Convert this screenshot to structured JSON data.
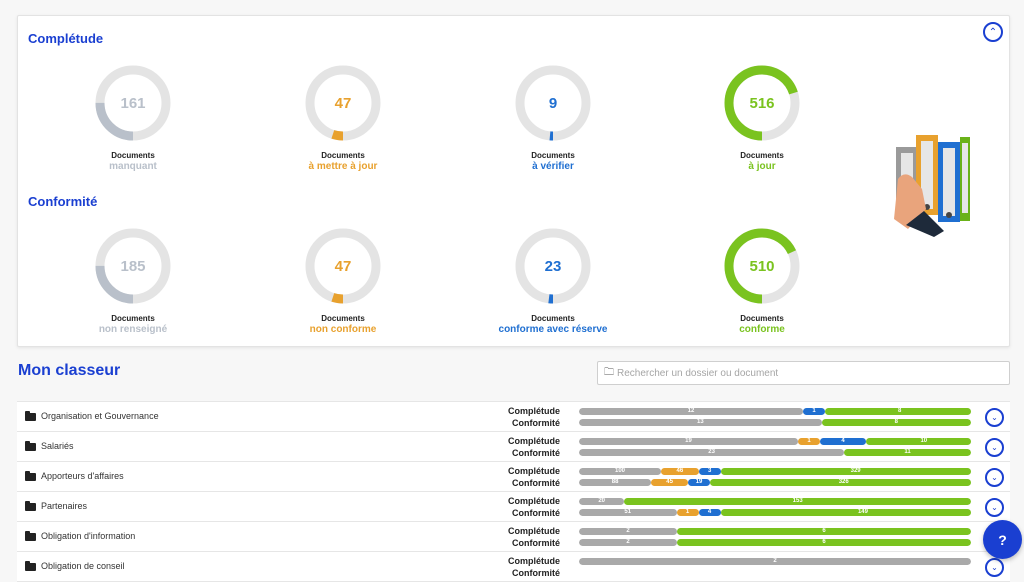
{
  "completude": {
    "title": "Complétude",
    "donuts": [
      {
        "value": "161",
        "label1": "Documents",
        "label2": "manquant",
        "color": "#b9c0ca",
        "fraction": 0.25
      },
      {
        "value": "47",
        "label1": "Documents",
        "label2": "à mettre à jour",
        "color": "#e8a12e",
        "fraction": 0.05
      },
      {
        "value": "9",
        "label1": "Documents",
        "label2": "à vérifier",
        "color": "#1f6fd1",
        "fraction": 0.015
      },
      {
        "value": "516",
        "label1": "Documents",
        "label2": "à jour",
        "color": "#7ac31f",
        "fraction": 0.7
      }
    ]
  },
  "conformite": {
    "title": "Conformité",
    "donuts": [
      {
        "value": "185",
        "label1": "Documents",
        "label2": "non renseigné",
        "color": "#b9c0ca",
        "fraction": 0.25
      },
      {
        "value": "47",
        "label1": "Documents",
        "label2": "non conforme",
        "color": "#e8a12e",
        "fraction": 0.05
      },
      {
        "value": "23",
        "label1": "Documents",
        "label2": "conforme avec réserve",
        "color": "#1f6fd1",
        "fraction": 0.02
      },
      {
        "value": "510",
        "label1": "Documents",
        "label2": "conforme",
        "color": "#7ac31f",
        "fraction": 0.68
      }
    ]
  },
  "classeur": {
    "title": "Mon classeur",
    "search_placeholder": "Rechercher un dossier ou document"
  },
  "colors": {
    "grey": "#a9a9a9",
    "orange": "#e8a12e",
    "blue": "#1f6fd1",
    "green": "#7ac31f"
  },
  "rows": [
    {
      "name": "Organisation et Gouvernance",
      "completude": [
        {
          "c": "grey",
          "v": 12,
          "l": "12"
        },
        {
          "c": "blue",
          "v": 1,
          "l": "1"
        },
        {
          "c": "green",
          "v": 8,
          "l": "8"
        }
      ],
      "conformite": [
        {
          "c": "grey",
          "v": 13,
          "l": "13"
        },
        {
          "c": "green",
          "v": 8,
          "l": "8"
        }
      ]
    },
    {
      "name": "Salariés",
      "completude": [
        {
          "c": "grey",
          "v": 19,
          "l": "19"
        },
        {
          "c": "orange",
          "v": 1,
          "l": "1"
        },
        {
          "c": "blue",
          "v": 4,
          "l": "4"
        },
        {
          "c": "green",
          "v": 10,
          "l": "10"
        }
      ],
      "conformite": [
        {
          "c": "grey",
          "v": 23,
          "l": "23"
        },
        {
          "c": "green",
          "v": 11,
          "l": "11"
        }
      ]
    },
    {
      "name": "Apporteurs d'affaires",
      "completude": [
        {
          "c": "grey",
          "v": 100,
          "l": "100"
        },
        {
          "c": "orange",
          "v": 46,
          "l": "46"
        },
        {
          "c": "blue",
          "v": 3,
          "l": "3"
        },
        {
          "c": "green",
          "v": 329,
          "l": "329"
        }
      ],
      "conformite": [
        {
          "c": "grey",
          "v": 88,
          "l": "88"
        },
        {
          "c": "orange",
          "v": 45,
          "l": "45"
        },
        {
          "c": "blue",
          "v": 19,
          "l": "19"
        },
        {
          "c": "green",
          "v": 326,
          "l": "326"
        }
      ]
    },
    {
      "name": "Partenaires",
      "completude": [
        {
          "c": "grey",
          "v": 20,
          "l": "20"
        },
        {
          "c": "green",
          "v": 153,
          "l": "153"
        }
      ],
      "conformite": [
        {
          "c": "grey",
          "v": 51,
          "l": "51"
        },
        {
          "c": "orange",
          "v": 1,
          "l": "1"
        },
        {
          "c": "blue",
          "v": 4,
          "l": "4"
        },
        {
          "c": "green",
          "v": 149,
          "l": "149"
        }
      ]
    },
    {
      "name": "Obligation d'information",
      "completude": [
        {
          "c": "grey",
          "v": 2,
          "l": "2"
        },
        {
          "c": "green",
          "v": 6,
          "l": "6"
        }
      ],
      "conformite": [
        {
          "c": "grey",
          "v": 2,
          "l": "2"
        },
        {
          "c": "green",
          "v": 6,
          "l": "6"
        }
      ]
    },
    {
      "name": "Obligation de conseil",
      "completude": [
        {
          "c": "grey",
          "v": 2,
          "l": "2"
        }
      ],
      "conformite": []
    }
  ],
  "row_labels": {
    "completude": "Complétude",
    "conformite": "Conformité"
  },
  "chat_icon": "chat-help-icon"
}
